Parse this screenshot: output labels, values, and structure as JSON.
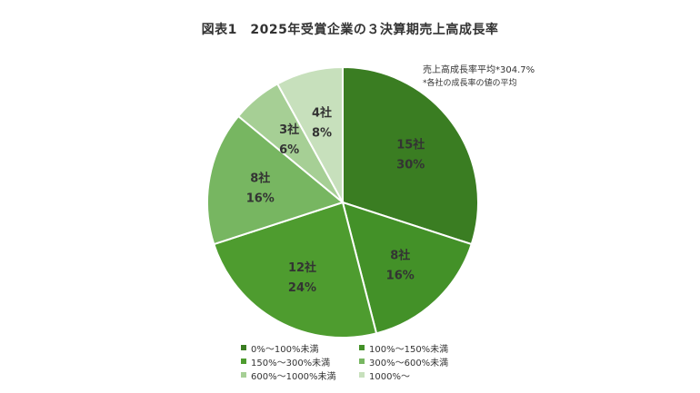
{
  "title": "図表1　2025年受賞企業の３決算期売上高成長率",
  "note": {
    "line1": "売上高成長率平均*304.7%",
    "line2": "*各社の成長率の値の平均"
  },
  "chart_data": {
    "type": "pie",
    "title": "図表1　2025年受賞企業の３決算期売上高成長率",
    "legend_position": "bottom",
    "slices": [
      {
        "label": "0%～100%未満",
        "count": 15,
        "count_label": "15社",
        "percent": 30,
        "percent_label": "30%",
        "color": "#3a7d22"
      },
      {
        "label": "100%～150%未満",
        "count": 8,
        "count_label": "8社",
        "percent": 16,
        "percent_label": "16%",
        "color": "#439128"
      },
      {
        "label": "150%～300%未満",
        "count": 12,
        "count_label": "12社",
        "percent": 24,
        "percent_label": "24%",
        "color": "#4e9c2f"
      },
      {
        "label": "300%～600%未満",
        "count": 8,
        "count_label": "8社",
        "percent": 16,
        "percent_label": "16%",
        "color": "#77b661"
      },
      {
        "label": "600%～1000%未満",
        "count": 3,
        "count_label": "3社",
        "percent": 6,
        "percent_label": "6%",
        "color": "#a6cf95"
      },
      {
        "label": "1000%～",
        "count": 4,
        "count_label": "4社",
        "percent": 8,
        "percent_label": "8%",
        "color": "#c7e0bc"
      }
    ]
  }
}
